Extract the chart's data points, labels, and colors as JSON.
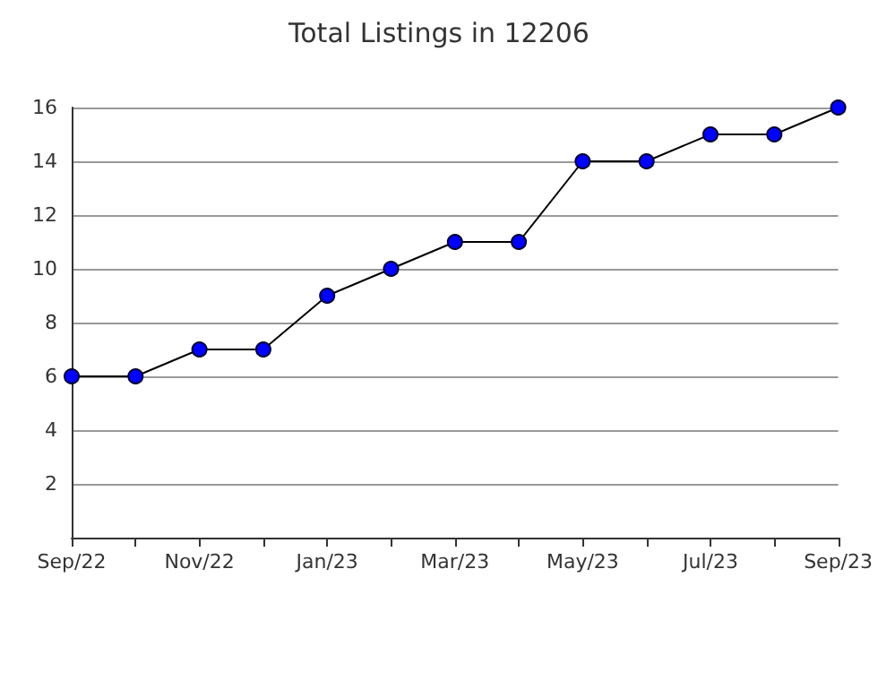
{
  "chart_data": {
    "type": "line",
    "title": "Total Listings in 12206",
    "categories": [
      "Sep/22",
      null,
      "Nov/22",
      null,
      "Jan/23",
      null,
      "Mar/23",
      null,
      "May/23",
      null,
      "Jul/23",
      null,
      "Sep/23"
    ],
    "series": [
      {
        "color": "#0000ff",
        "values": [
          6,
          6,
          7,
          7,
          9,
          10,
          11,
          11,
          14,
          14,
          15,
          15,
          16
        ]
      }
    ],
    "ylim": [
      0,
      16
    ],
    "yticks": [
      2,
      4,
      6,
      8,
      10,
      12,
      14,
      16
    ],
    "grid": "y",
    "marker": "circle",
    "line_style": "solid"
  }
}
